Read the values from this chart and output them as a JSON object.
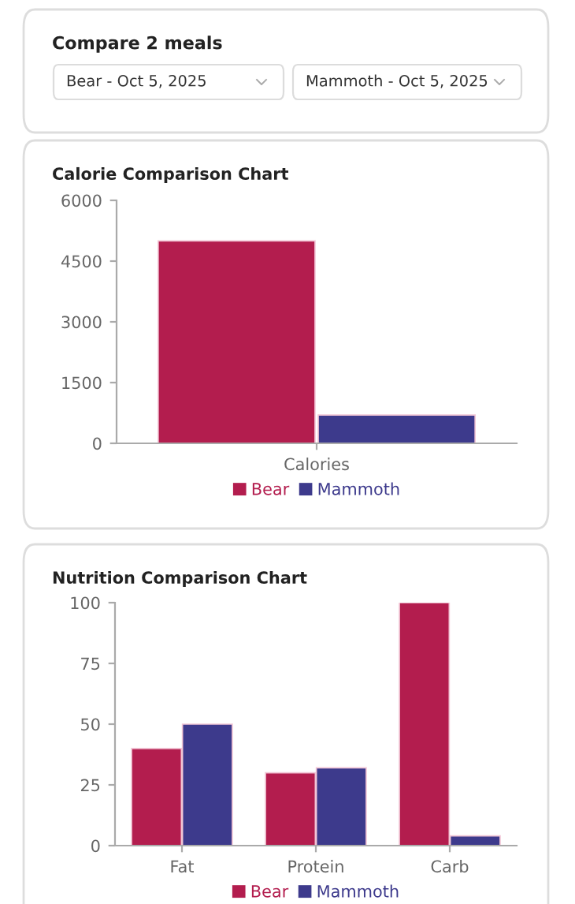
{
  "chart_data": [
    {
      "type": "other",
      "title": "Compare 2 meals",
      "annotations": [
        "Bear - Oct 5, 2025",
        "Mammoth - Oct 5, 2025"
      ]
    },
    {
      "type": "bar",
      "title": "Calorie Comparison Chart",
      "categories": [
        "Calories"
      ],
      "ylim": [
        0,
        6000
      ],
      "yticks": [
        0,
        1500,
        3000,
        4500,
        6000
      ],
      "grid": false,
      "legend": "bottom",
      "series": [
        {
          "name": "Bear",
          "color": "#b31d4e",
          "values": [
            5000
          ]
        },
        {
          "name": "Mammoth",
          "color": "#3d3a8c",
          "values": [
            700
          ]
        }
      ]
    },
    {
      "type": "bar",
      "title": "Nutrition Comparison Chart",
      "categories": [
        "Fat",
        "Protein",
        "Carb"
      ],
      "ylim": [
        0,
        100
      ],
      "yticks": [
        0,
        25,
        50,
        75,
        100
      ],
      "grid": false,
      "legend": "bottom",
      "series": [
        {
          "name": "Bear",
          "color": "#b31d4e",
          "values": [
            40,
            30,
            100
          ]
        },
        {
          "name": "Mammoth",
          "color": "#3d3a8c",
          "values": [
            50,
            32,
            4
          ]
        }
      ]
    }
  ]
}
